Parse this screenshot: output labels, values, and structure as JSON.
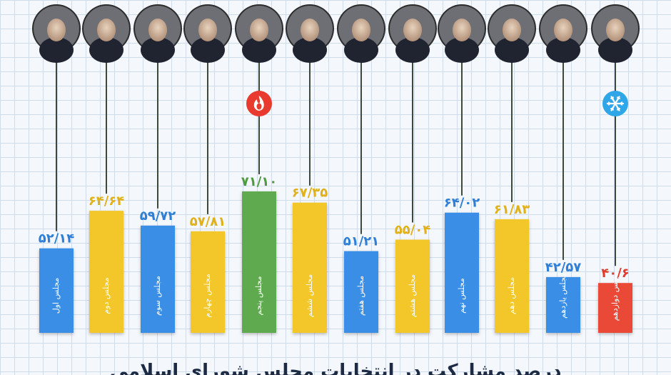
{
  "chart_data": {
    "type": "bar",
    "title": "درصد مشارکت در انتخابات مجلس",
    "categories": [
      "مجلس اول",
      "مجلس دوم",
      "مجلس سوم",
      "مجلس چهارم",
      "مجلس پنجم",
      "مجلس ششم",
      "مجلس هفتم",
      "مجلس هشتم",
      "مجلس نهم",
      "مجلس دهم",
      "مجلس یازدهم",
      "مجلس دوازدهم"
    ],
    "values": [
      52.14,
      64.64,
      59.72,
      57.81,
      71.1,
      67.35,
      51.21,
      55.04,
      64.02,
      61.83,
      42.57,
      40.6
    ],
    "value_labels": [
      "۵۲/۱۴",
      "۶۴/۶۴",
      "۵۹/۷۲",
      "۵۷/۸۱",
      "۷۱/۱۰",
      "۶۷/۳۵",
      "۵۱/۲۱",
      "۵۵/۰۴",
      "۶۴/۰۲",
      "۶۱/۸۳",
      "۴۲/۵۷",
      "۴۰/۶"
    ],
    "bar_colors": [
      "#3b8ee6",
      "#f3c62b",
      "#3b8ee6",
      "#f3c62b",
      "#5faa4f",
      "#f3c62b",
      "#3b8ee6",
      "#f3c62b",
      "#3b8ee6",
      "#f3c62b",
      "#3b8ee6",
      "#ea4a38"
    ],
    "label_colors": [
      "#2f7fd6",
      "#e1b11a",
      "#2f7fd6",
      "#e1b11a",
      "#4f9a40",
      "#e1b11a",
      "#2f7fd6",
      "#e1b11a",
      "#2f7fd6",
      "#e1b11a",
      "#2f7fd6",
      "#e03c2c"
    ],
    "markers": [
      {
        "index": 4,
        "icon": "fire-icon",
        "color": "#e83a2e"
      },
      {
        "index": 11,
        "icon": "snowflake-icon",
        "color": "#2fa6e8"
      }
    ],
    "ylim": [
      0,
      100
    ],
    "grid": true,
    "legend": "none"
  },
  "footer": {
    "title": "درصد مشارکت در انتخابات مجلس شورای اسلامی"
  }
}
